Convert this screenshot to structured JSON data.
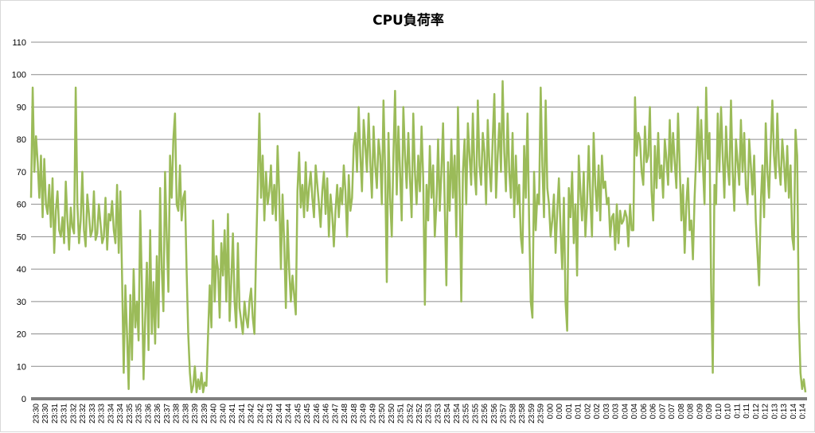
{
  "chart_data": {
    "type": "line",
    "title": "CPU負荷率",
    "xlabel": "",
    "ylabel": "",
    "ylim": [
      0,
      110
    ],
    "yticks": [
      0,
      10,
      20,
      30,
      40,
      50,
      60,
      70,
      80,
      90,
      100,
      110
    ],
    "grid": true,
    "legend": "none",
    "colors": {
      "series": "#9bbb59",
      "axis": "#7f7f7f",
      "grid": "#8c8c8c"
    },
    "x_tick_labels": [
      "23:30",
      "23:30",
      "23:31",
      "23:31",
      "23:32",
      "23:32",
      "23:33",
      "23:33",
      "23:34",
      "23:34",
      "23:35",
      "23:35",
      "23:36",
      "23:36",
      "23:37",
      "23:38",
      "23:38",
      "23:39",
      "23:39",
      "23:40",
      "23:40",
      "23:41",
      "23:41",
      "23:42",
      "23:42",
      "23:43",
      "23:44",
      "23:44",
      "23:45",
      "23:45",
      "23:46",
      "23:46",
      "23:47",
      "23:48",
      "23:48",
      "23:49",
      "23:49",
      "23:50",
      "23:50",
      "23:51",
      "23:52",
      "23:52",
      "23:53",
      "23:53",
      "23:54",
      "23:54",
      "23:55",
      "23:55",
      "23:56",
      "23:56",
      "23:57",
      "23:58",
      "23:58",
      "23:59",
      "23:59",
      "0:00",
      "0:00",
      "0:01",
      "0:01",
      "0:02",
      "0:02",
      "0:03",
      "0:03",
      "0:04",
      "0:04",
      "0:06",
      "0:06",
      "0:07",
      "0:07",
      "0:08",
      "0:08",
      "0:09",
      "0:09",
      "0:10",
      "0:10",
      "0:11",
      "0:11",
      "0:12",
      "0:12",
      "0:13",
      "0:13",
      "0:14",
      "0:14"
    ],
    "series": [
      {
        "values": [
          62,
          96,
          70,
          81,
          73,
          62,
          75,
          56,
          74,
          60,
          57,
          66,
          53,
          68,
          45,
          58,
          64,
          52,
          50,
          56,
          48,
          67,
          55,
          46,
          59,
          53,
          51,
          96,
          60,
          48,
          55,
          70,
          52,
          47,
          63,
          57,
          50,
          52,
          64,
          49,
          51,
          60,
          54,
          48,
          50,
          62,
          46,
          57,
          55,
          61,
          52,
          48,
          66,
          45,
          64,
          38,
          8,
          35,
          20,
          3,
          32,
          12,
          40,
          22,
          30,
          18,
          58,
          35,
          6,
          25,
          42,
          15,
          52,
          20,
          36,
          17,
          44,
          22,
          65,
          40,
          27,
          70,
          50,
          33,
          75,
          62,
          80,
          88,
          60,
          58,
          72,
          55,
          62,
          64,
          40,
          20,
          8,
          2,
          4,
          10,
          2,
          6,
          3,
          8,
          2,
          5,
          4,
          20,
          35,
          22,
          55,
          30,
          44,
          40,
          25,
          48,
          38,
          52,
          30,
          57,
          24,
          36,
          51,
          30,
          22,
          48,
          28,
          24,
          20,
          30,
          25,
          22,
          30,
          34,
          25,
          20,
          45,
          66,
          88,
          62,
          75,
          55,
          70,
          60,
          64,
          72,
          57,
          66,
          55,
          78,
          63,
          40,
          63,
          48,
          28,
          55,
          40,
          30,
          38,
          32,
          26,
          64,
          76,
          59,
          66,
          56,
          73,
          58,
          65,
          70,
          62,
          56,
          72,
          66,
          60,
          53,
          64,
          70,
          57,
          68,
          50,
          63,
          57,
          47,
          58,
          66,
          56,
          65,
          60,
          72,
          64,
          50,
          69,
          58,
          62,
          78,
          82,
          70,
          90,
          75,
          64,
          86,
          78,
          70,
          88,
          73,
          62,
          84,
          72,
          65,
          80,
          75,
          60,
          92,
          70,
          36,
          82,
          62,
          50,
          75,
          95,
          63,
          84,
          70,
          55,
          90,
          75,
          65,
          82,
          68,
          56,
          88,
          70,
          60,
          75,
          64,
          84,
          68,
          29,
          66,
          55,
          78,
          62,
          72,
          50,
          60,
          80,
          58,
          70,
          85,
          60,
          35,
          73,
          58,
          80,
          62,
          75,
          50,
          90,
          64,
          30,
          70,
          80,
          60,
          85,
          75,
          66,
          88,
          70,
          63,
          92,
          72,
          66,
          82,
          76,
          60,
          86,
          72,
          64,
          80,
          94,
          62,
          75,
          85,
          70,
          98,
          76,
          64,
          88,
          70,
          62,
          82,
          56,
          75,
          60,
          66,
          50,
          45,
          78,
          62,
          88,
          55,
          30,
          25,
          70,
          52,
          63,
          60,
          96,
          72,
          56,
          92,
          65,
          60,
          50,
          55,
          63,
          45,
          58,
          68,
          52,
          40,
          62,
          30,
          21,
          65,
          56,
          70,
          48,
          60,
          38,
          75,
          64,
          55,
          70,
          50,
          60,
          78,
          62,
          50,
          82,
          66,
          58,
          72,
          55,
          75,
          65,
          67,
          60,
          62,
          50,
          56,
          57,
          46,
          60,
          48,
          58,
          54,
          55,
          58,
          56,
          47,
          60,
          52,
          52,
          93,
          75,
          82,
          80,
          70,
          66,
          84,
          73,
          75,
          90,
          64,
          55,
          78,
          65,
          82,
          68,
          72,
          62,
          80,
          74,
          66,
          86,
          70,
          82,
          73,
          65,
          88,
          72,
          55,
          66,
          45,
          60,
          68,
          52,
          55,
          43,
          62,
          75,
          90,
          70,
          86,
          72,
          60,
          96,
          74,
          82,
          35,
          8,
          66,
          60,
          88,
          70,
          90,
          75,
          62,
          84,
          72,
          66,
          92,
          70,
          58,
          80,
          73,
          66,
          86,
          70,
          82,
          65,
          60,
          80,
          72,
          63,
          75,
          55,
          45,
          35,
          60,
          72,
          56,
          85,
          70,
          62,
          78,
          92,
          75,
          68,
          88,
          72,
          66,
          80,
          73,
          64,
          78,
          62,
          72,
          50,
          46,
          83,
          75,
          25,
          8,
          3,
          6,
          2
        ]
      }
    ]
  }
}
